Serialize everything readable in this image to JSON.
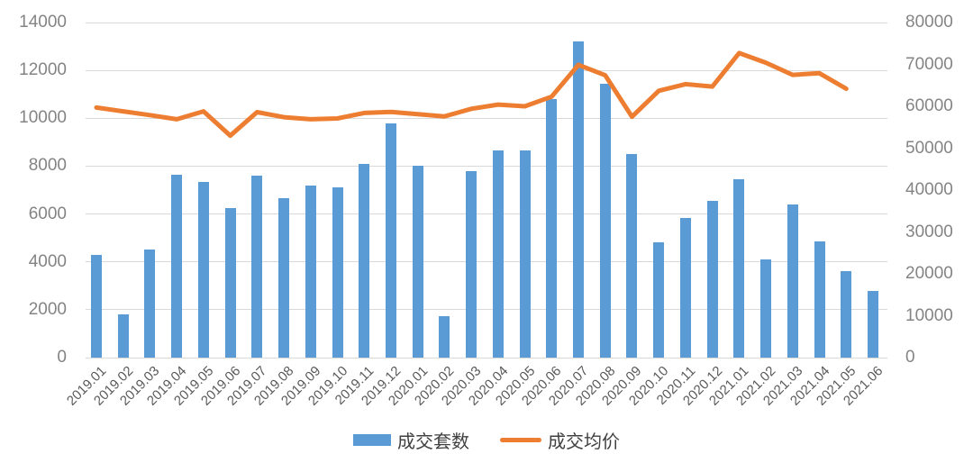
{
  "chart_data": {
    "type": "combo-bar-line",
    "title": "",
    "categories": [
      "2019.01",
      "2019.02",
      "2019.03",
      "2019.04",
      "2019.05",
      "2019.06",
      "2019.07",
      "2019.08",
      "2019.09",
      "2019.10",
      "2019.11",
      "2019.12",
      "2020.01",
      "2020.02",
      "2020.03",
      "2020.04",
      "2020.05",
      "2020.06",
      "2020.07",
      "2020.08",
      "2020.09",
      "2020.10",
      "2020.11",
      "2020.12",
      "2021.01",
      "2021.02",
      "2021.03",
      "2021.04",
      "2021.05",
      "2021.06"
    ],
    "series": [
      {
        "name": "成交套数",
        "type": "bar",
        "y_axis": "left",
        "color": "#5B9BD5",
        "values": [
          4300,
          1800,
          4500,
          7650,
          7350,
          6250,
          7600,
          6650,
          7200,
          7100,
          8100,
          9800,
          8000,
          1750,
          7800,
          8650,
          8650,
          10800,
          13200,
          11450,
          8500,
          4800,
          5850,
          6550,
          7450,
          4100,
          6400,
          4850,
          3600,
          2800
        ]
      },
      {
        "name": "成交均价",
        "type": "line",
        "y_axis": "right",
        "color": "#ED7D31",
        "values": [
          59700,
          58800,
          57900,
          56900,
          58800,
          53000,
          58600,
          57400,
          56900,
          57100,
          58400,
          58650,
          58100,
          57600,
          59400,
          60400,
          60000,
          62300,
          69900,
          67400,
          57500,
          63700,
          65300,
          64700,
          72700,
          70400,
          67500,
          67900,
          64200,
          null
        ]
      }
    ],
    "left_axis": {
      "min": 0,
      "max": 14000,
      "step": 2000,
      "tick_labels": [
        "0",
        "2000",
        "4000",
        "6000",
        "8000",
        "10000",
        "12000",
        "14000"
      ]
    },
    "right_axis": {
      "min": 0,
      "max": 80000,
      "step": 10000,
      "tick_labels": [
        "0",
        "10000",
        "20000",
        "30000",
        "40000",
        "50000",
        "60000",
        "70000",
        "80000"
      ]
    },
    "grid": "horizontal",
    "gridline_color": "#d9d9d9",
    "legend_position": "bottom"
  },
  "legend": {
    "items": [
      {
        "label": "成交套数",
        "color": "#5B9BD5",
        "swatch": "bar"
      },
      {
        "label": "成交均价",
        "color": "#ED7D31",
        "swatch": "line"
      }
    ]
  }
}
